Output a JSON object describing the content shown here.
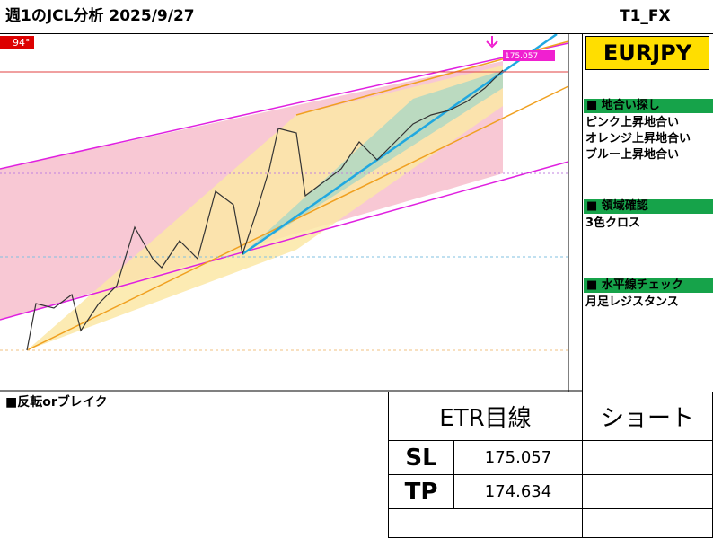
{
  "header": {
    "title": "週1のJCL分析 2025/9/27",
    "author": "T1_FX"
  },
  "chart": {
    "badge": "94°",
    "price_label": "175.057"
  },
  "panel": {
    "symbol": "EURJPY",
    "sections": [
      {
        "heading": "■ 地合い探し",
        "items": [
          "ピンク上昇地合い",
          "オレンジ上昇地合い",
          "ブルー上昇地合い"
        ]
      },
      {
        "heading": "■ 領域確認",
        "items": [
          "3色クロス"
        ]
      },
      {
        "heading": "■ 水平線チェック",
        "items": [
          "月足レジスタンス"
        ]
      }
    ]
  },
  "note": "■反転orブレイク",
  "table": {
    "title": "ETR目線",
    "direction": "ショート",
    "rows": [
      [
        "SL",
        "175.057"
      ],
      [
        "TP",
        "174.634"
      ]
    ]
  }
}
